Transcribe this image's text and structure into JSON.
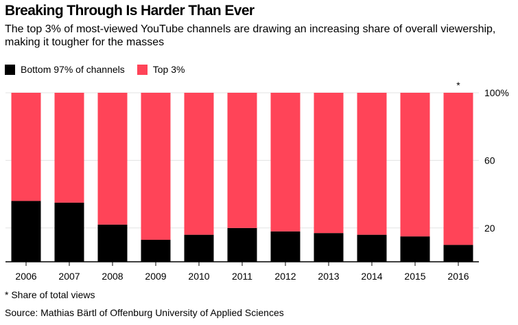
{
  "title": "Breaking Through Is Harder Than Ever",
  "subtitle": "The top 3% of most-viewed YouTube channels are drawing an increasing share of overall viewership, making it tougher for the masses",
  "note": "* Share of total views",
  "source": "Source: Mathias Bärtl of Offenburg University of Applied Sciences",
  "colors": {
    "bottom": "#000000",
    "top": "#ff4458",
    "axis": "#000000",
    "grid": "#e3e3e3"
  },
  "chart_data": {
    "type": "bar",
    "stacked": true,
    "categories": [
      "2006",
      "2007",
      "2008",
      "2009",
      "2010",
      "2011",
      "2012",
      "2013",
      "2014",
      "2015",
      "2016"
    ],
    "series": [
      {
        "name": "Bottom 97% of channels",
        "values": [
          36,
          35,
          22,
          13,
          16,
          20,
          18,
          17,
          16,
          15,
          10
        ]
      },
      {
        "name": "Top 3%",
        "values": [
          64,
          65,
          78,
          87,
          84,
          80,
          82,
          83,
          84,
          85,
          90
        ]
      }
    ],
    "ylim": [
      0,
      100
    ],
    "yticks": [
      20,
      60,
      100
    ],
    "ytick_labels": [
      "20",
      "60",
      "100%"
    ],
    "annotation": {
      "category": "2016",
      "text": "*"
    },
    "legend": "top-left",
    "grid": true
  }
}
